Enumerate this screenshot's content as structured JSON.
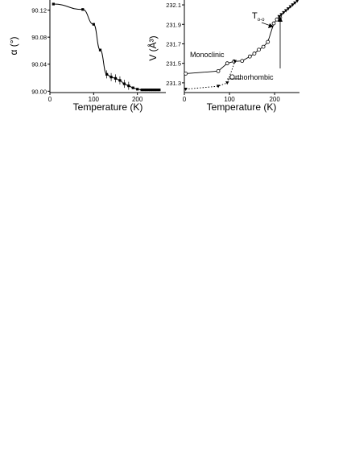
{
  "chart_data": [
    {
      "type": "scatter",
      "title": "",
      "xlabel": "Temperature (K)",
      "ylabel": "α (°)",
      "xlim": [
        0,
        265
      ],
      "ylim": [
        89.998,
        90.135
      ],
      "x_ticks": [
        0,
        100,
        200
      ],
      "y_ticks": [
        "90.00",
        "90.04",
        "90.08",
        "90.12"
      ],
      "grid": false,
      "series": [
        {
          "marker": "square",
          "fit": true,
          "points": [
            {
              "x": 8,
              "y": 90.129
            },
            {
              "x": 75,
              "y": 90.121
            },
            {
              "x": 100,
              "y": 90.099
            },
            {
              "x": 115,
              "y": 90.061
            },
            {
              "x": 130,
              "y": 90.025
            },
            {
              "x": 140,
              "y": 90.021
            },
            {
              "x": 150,
              "y": 90.019
            },
            {
              "x": 160,
              "y": 90.016
            },
            {
              "x": 170,
              "y": 90.011
            },
            {
              "x": 180,
              "y": 90.008
            },
            {
              "x": 190,
              "y": 90.005
            },
            {
              "x": 200,
              "y": 90.003
            },
            {
              "x": 210,
              "y": 90.002
            },
            {
              "x": 215,
              "y": 90.002
            },
            {
              "x": 220,
              "y": 90.002
            },
            {
              "x": 225,
              "y": 90.002
            },
            {
              "x": 230,
              "y": 90.002
            },
            {
              "x": 235,
              "y": 90.002
            },
            {
              "x": 240,
              "y": 90.002
            },
            {
              "x": 245,
              "y": 90.002
            },
            {
              "x": 250,
              "y": 90.002
            }
          ],
          "errors_at_x": [
            130,
            140,
            150,
            160,
            170,
            180
          ]
        }
      ]
    },
    {
      "type": "scatter",
      "title": "",
      "xlabel": "Temperature (K)",
      "ylabel": "V (Å³)",
      "xlim": [
        0,
        255
      ],
      "ylim": [
        231.2,
        232.15
      ],
      "x_ticks": [
        0,
        100,
        200
      ],
      "y_ticks": [
        "231.3",
        "231.5",
        "231.7",
        "231.9",
        "232.1"
      ],
      "grid": false,
      "series": [
        {
          "label": "Monoclinic",
          "marker": "circle-open",
          "line": "solid",
          "points": [
            {
              "x": 3,
              "y": 231.395
            },
            {
              "x": 75,
              "y": 231.42
            },
            {
              "x": 95,
              "y": 231.5
            },
            {
              "x": 110,
              "y": 231.52
            },
            {
              "x": 128,
              "y": 231.525
            },
            {
              "x": 145,
              "y": 231.57
            },
            {
              "x": 155,
              "y": 231.6
            },
            {
              "x": 165,
              "y": 231.64
            },
            {
              "x": 175,
              "y": 231.67
            },
            {
              "x": 185,
              "y": 231.72
            },
            {
              "x": 198,
              "y": 231.91
            },
            {
              "x": 205,
              "y": 231.95
            },
            {
              "x": 212,
              "y": 231.97
            }
          ]
        },
        {
          "label": "Orthorhombic",
          "marker": "triangle",
          "line": "dotted",
          "points": [
            {
              "x": 3,
              "y": 231.235
            },
            {
              "x": 75,
              "y": 231.265
            },
            {
              "x": 95,
              "y": 231.3
            },
            {
              "x": 112,
              "y": 231.52
            }
          ]
        },
        {
          "label": "",
          "marker": "triangle",
          "line": "solid",
          "points": [
            {
              "x": 210,
              "y": 231.98
            },
            {
              "x": 215,
              "y": 232.0
            },
            {
              "x": 220,
              "y": 232.02
            },
            {
              "x": 225,
              "y": 232.04
            },
            {
              "x": 230,
              "y": 232.06
            },
            {
              "x": 235,
              "y": 232.08
            },
            {
              "x": 240,
              "y": 232.1
            },
            {
              "x": 245,
              "y": 232.12
            },
            {
              "x": 250,
              "y": 232.14
            }
          ]
        }
      ],
      "annotations": {
        "monoclinic": "Monoclinic",
        "orthorhombic": "Orthorhombic",
        "transition_base": "T",
        "transition_sub": "o-o"
      }
    }
  ]
}
